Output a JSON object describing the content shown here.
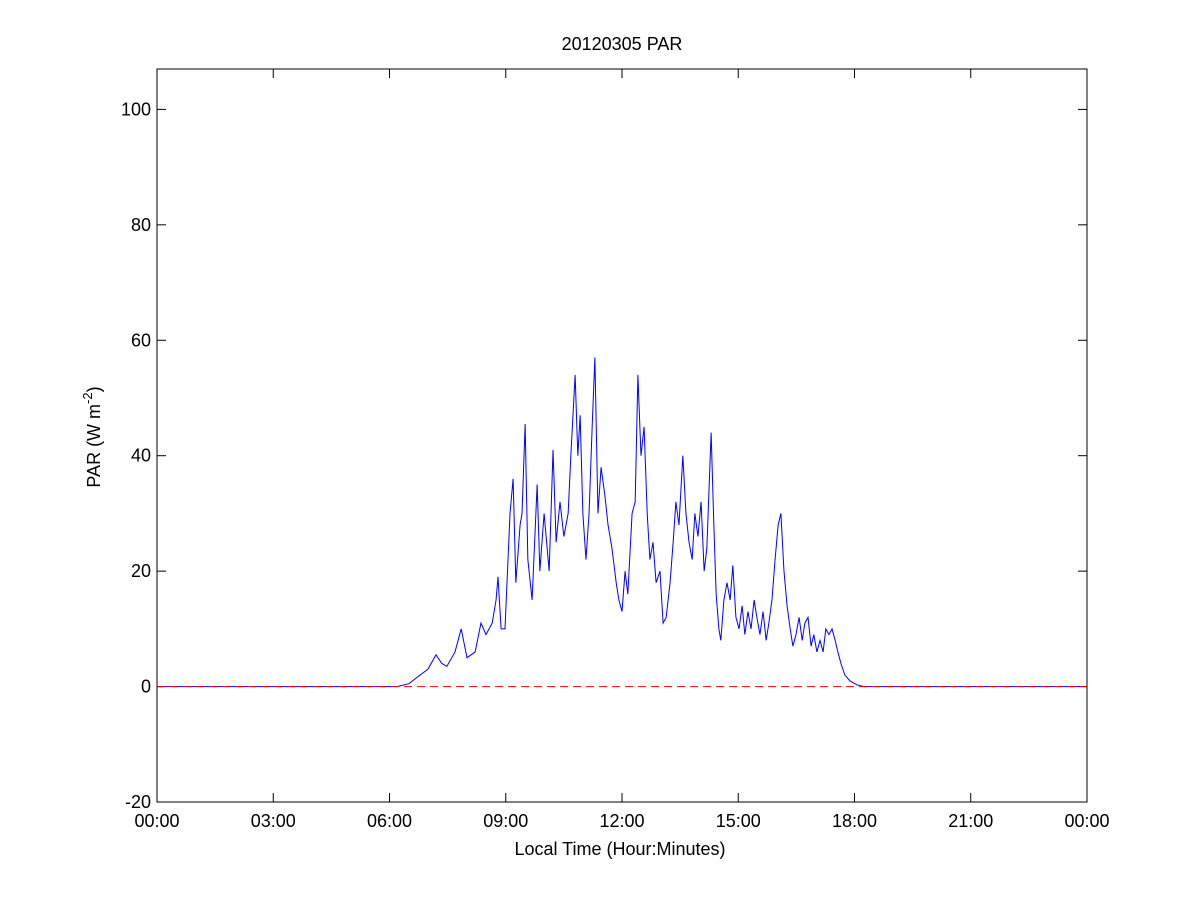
{
  "chart_data": {
    "type": "line",
    "title": "20120305 PAR",
    "xlabel": "Local Time (Hour:Minutes)",
    "ylabel": {
      "base": "PAR (W m",
      "superscript": "-2",
      "suffix": ")"
    },
    "xlim": [
      0,
      24
    ],
    "ylim": [
      -20,
      107
    ],
    "xticks": [
      {
        "value": 0,
        "label": "00:00"
      },
      {
        "value": 3,
        "label": "03:00"
      },
      {
        "value": 6,
        "label": "06:00"
      },
      {
        "value": 9,
        "label": "09:00"
      },
      {
        "value": 12,
        "label": "12:00"
      },
      {
        "value": 15,
        "label": "15:00"
      },
      {
        "value": 18,
        "label": "18:00"
      },
      {
        "value": 21,
        "label": "21:00"
      },
      {
        "value": 24,
        "label": "00:00"
      }
    ],
    "yticks": [
      -20,
      0,
      20,
      40,
      60,
      80,
      100
    ],
    "grid": false,
    "reference_line": {
      "value": 0,
      "color": "#ff0000",
      "style": "dashed"
    },
    "series": [
      {
        "color": "#0000ff",
        "x": [
          0,
          6.19,
          6.5,
          6.79,
          6.99,
          7.2,
          7.35,
          7.48,
          7.69,
          7.85,
          8.0,
          8.21,
          8.36,
          8.49,
          8.65,
          8.75,
          8.8,
          8.88,
          8.98,
          9.11,
          9.19,
          9.26,
          9.37,
          9.42,
          9.5,
          9.57,
          9.68,
          9.81,
          9.88,
          9.99,
          10.12,
          10.22,
          10.3,
          10.4,
          10.5,
          10.61,
          10.68,
          10.79,
          10.86,
          10.92,
          10.99,
          11.07,
          11.15,
          11.23,
          11.3,
          11.38,
          11.46,
          11.56,
          11.64,
          11.74,
          11.85,
          11.92,
          12.0,
          12.08,
          12.15,
          12.26,
          12.34,
          12.41,
          12.49,
          12.57,
          12.65,
          12.72,
          12.8,
          12.88,
          12.98,
          13.06,
          13.14,
          13.24,
          13.32,
          13.39,
          13.47,
          13.57,
          13.65,
          13.73,
          13.81,
          13.88,
          13.96,
          14.04,
          14.12,
          14.19,
          14.3,
          14.37,
          14.43,
          14.5,
          14.55,
          14.63,
          14.71,
          14.79,
          14.86,
          14.94,
          15.02,
          15.1,
          15.17,
          15.25,
          15.33,
          15.41,
          15.48,
          15.56,
          15.64,
          15.72,
          15.79,
          15.87,
          15.95,
          16.03,
          16.1,
          16.18,
          16.26,
          16.34,
          16.41,
          16.49,
          16.57,
          16.65,
          16.72,
          16.8,
          16.88,
          16.95,
          17.03,
          17.11,
          17.19,
          17.26,
          17.34,
          17.42,
          17.5,
          17.57,
          17.65,
          17.75,
          17.88,
          18.06,
          18.25,
          24
        ],
        "values": [
          0,
          0,
          0.5,
          2,
          3,
          5.5,
          4,
          3.5,
          6,
          10,
          5,
          6,
          11,
          9,
          11,
          15,
          19,
          10,
          10,
          30,
          36,
          18,
          28,
          30,
          45.5,
          22,
          15,
          35,
          20,
          30,
          20,
          41,
          25,
          32,
          26,
          30,
          40,
          54,
          40,
          47,
          30,
          22,
          30,
          45,
          57,
          30,
          38,
          33,
          28,
          24,
          18,
          15,
          13,
          20,
          16,
          30,
          32,
          54,
          40,
          45,
          30,
          22,
          25,
          18,
          20,
          11,
          12,
          18,
          25,
          32,
          28,
          40,
          30,
          25,
          22,
          30,
          26,
          32,
          20,
          24,
          44,
          28,
          16,
          10,
          8,
          15,
          18,
          15,
          21,
          12,
          10,
          14,
          9,
          13,
          10,
          15,
          12,
          9,
          13,
          8,
          11,
          15,
          22,
          28,
          30,
          20,
          14,
          10,
          7,
          9,
          12,
          8,
          11,
          12,
          7,
          9,
          6,
          8,
          6,
          10,
          9,
          10,
          8,
          6,
          4,
          2,
          1,
          0.3,
          0,
          0
        ]
      }
    ]
  }
}
